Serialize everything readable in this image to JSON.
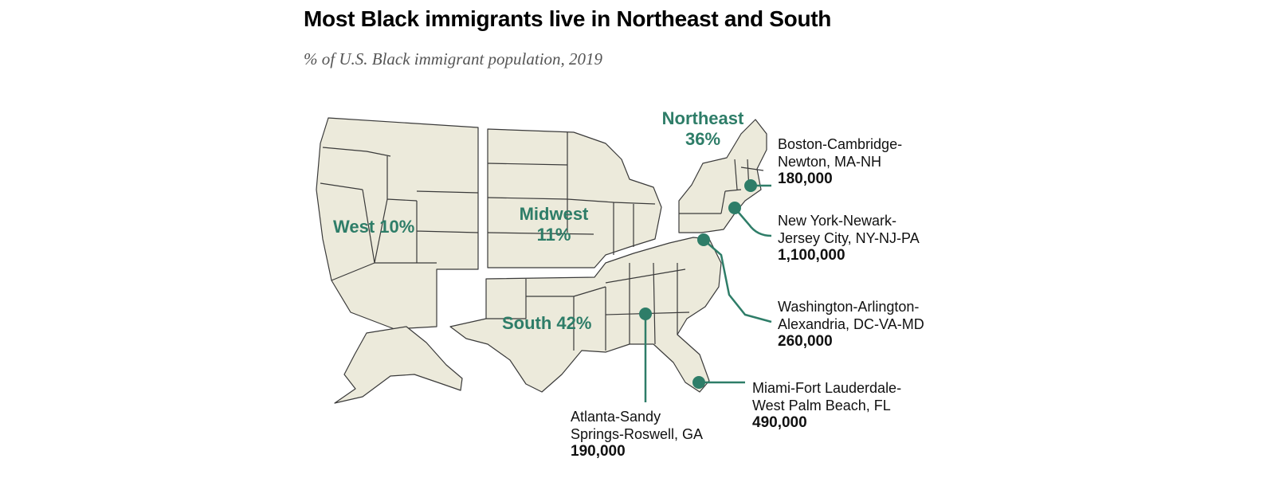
{
  "title": "Most Black immigrants live in Northeast and South",
  "subtitle": "% of U.S. Black immigrant population, 2019",
  "colors": {
    "land": "#eceadb",
    "border": "#3a3a3a",
    "accent": "#2e7d68"
  },
  "regions": [
    {
      "id": "west",
      "line1": "West 10%",
      "line2": ""
    },
    {
      "id": "midwest",
      "line1": "Midwest",
      "line2": "11%"
    },
    {
      "id": "northeast",
      "line1": "Northeast",
      "line2": "36%"
    },
    {
      "id": "south",
      "line1": "South 42%",
      "line2": ""
    }
  ],
  "metros": [
    {
      "id": "boston",
      "line1": "Boston-Cambridge-",
      "line2": "Newton, MA-NH",
      "value": "180,000"
    },
    {
      "id": "newyork",
      "line1": "New York-Newark-",
      "line2": "Jersey City, NY-NJ-PA",
      "value": "1,100,000"
    },
    {
      "id": "washington",
      "line1": "Washington-Arlington-",
      "line2": "Alexandria, DC-VA-MD",
      "value": "260,000"
    },
    {
      "id": "miami",
      "line1": "Miami-Fort Lauderdale-",
      "line2": "West Palm Beach, FL",
      "value": "490,000"
    },
    {
      "id": "atlanta",
      "line1": "Atlanta-Sandy",
      "line2": "Springs-Roswell, GA",
      "value": "190,000"
    }
  ]
}
